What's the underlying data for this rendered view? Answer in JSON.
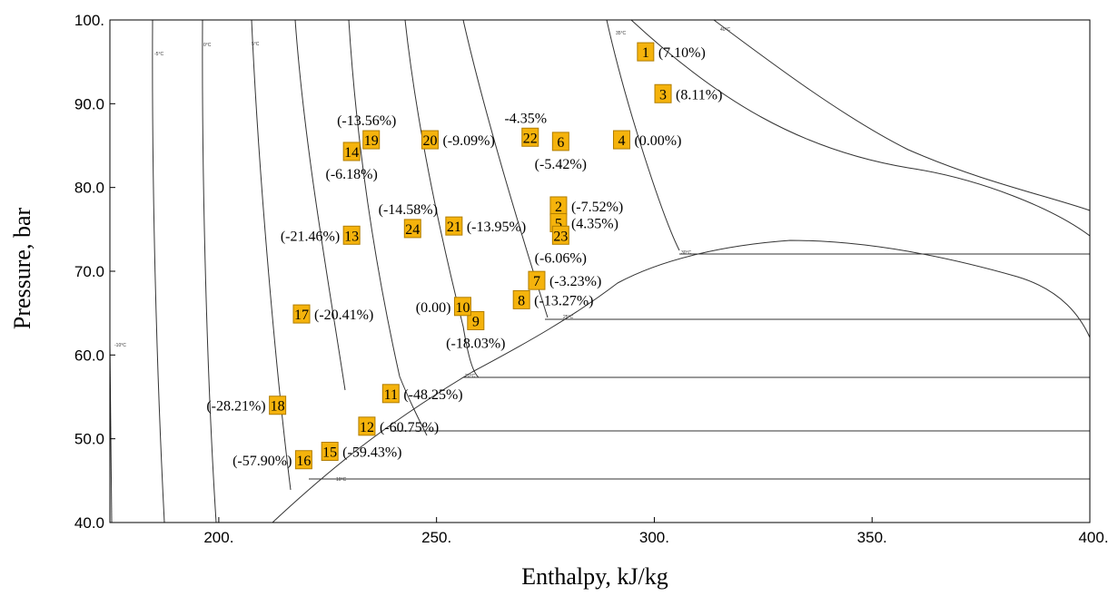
{
  "chart_data": {
    "type": "scatter",
    "xlabel": "Enthalpy, kJ/kg",
    "ylabel": "Pressure, bar",
    "xlim": [
      175,
      400
    ],
    "ylim": [
      40,
      100
    ],
    "x_ticks": [
      {
        "value": 200,
        "label": "200."
      },
      {
        "value": 250,
        "label": "250."
      },
      {
        "value": 300,
        "label": "300."
      },
      {
        "value": 350,
        "label": "350."
      },
      {
        "value": 400,
        "label": "400."
      }
    ],
    "y_ticks": [
      {
        "value": 40,
        "label": "40.0"
      },
      {
        "value": 50,
        "label": "50.0"
      },
      {
        "value": 60,
        "label": "60.0"
      },
      {
        "value": 70,
        "label": "70.0"
      },
      {
        "value": 80,
        "label": "80.0"
      },
      {
        "value": 90,
        "label": "90.0"
      },
      {
        "value": 100,
        "label": "100."
      }
    ],
    "marker_color": "#f5b30c",
    "marker_border": "#b07d00",
    "line_color": "#333333",
    "points": [
      {
        "id": "1",
        "x": 298.0,
        "y": 96.2,
        "pct": "(7.10%)",
        "pos": "right"
      },
      {
        "id": "2",
        "x": 278.0,
        "y": 77.8,
        "pct": "(-7.52%)",
        "pos": "right"
      },
      {
        "id": "3",
        "x": 302.0,
        "y": 91.2,
        "pct": "(8.11%)",
        "pos": "right"
      },
      {
        "id": "4",
        "x": 292.5,
        "y": 85.7,
        "pct": "(0.00%)",
        "pos": "right"
      },
      {
        "id": "5",
        "x": 278.0,
        "y": 75.8,
        "pct": "(4.35%)",
        "pos": "right"
      },
      {
        "id": "6",
        "x": 278.5,
        "y": 85.5,
        "pct": "(-5.42%)",
        "pos": "below"
      },
      {
        "id": "7",
        "x": 273.0,
        "y": 68.9,
        "pct": "(-3.23%)",
        "pos": "right"
      },
      {
        "id": "8",
        "x": 269.5,
        "y": 66.6,
        "pct": "(-13.27%)",
        "pos": "right"
      },
      {
        "id": "9",
        "x": 259.0,
        "y": 64.1,
        "pct": "(-18.03%)",
        "pos": "below"
      },
      {
        "id": "10",
        "x": 256.0,
        "y": 65.8,
        "pct": "(0.00)",
        "pos": "left"
      },
      {
        "id": "11",
        "x": 239.5,
        "y": 55.4,
        "pct": "(-48.25%)",
        "pos": "right"
      },
      {
        "id": "12",
        "x": 234.0,
        "y": 51.5,
        "pct": "(-60.75%)",
        "pos": "right"
      },
      {
        "id": "13",
        "x": 230.5,
        "y": 74.3,
        "pct": "(-21.46%)",
        "pos": "left"
      },
      {
        "id": "14",
        "x": 230.5,
        "y": 84.3,
        "pct": "(-6.18%)",
        "pos": "below"
      },
      {
        "id": "15",
        "x": 225.5,
        "y": 48.5,
        "pct": "(-59.43%)",
        "pos": "right"
      },
      {
        "id": "16",
        "x": 219.5,
        "y": 47.5,
        "pct": "(-57.90%)",
        "pos": "left"
      },
      {
        "id": "17",
        "x": 219.0,
        "y": 64.9,
        "pct": "(-20.41%)",
        "pos": "right"
      },
      {
        "id": "18",
        "x": 213.5,
        "y": 54.0,
        "pct": "(-28.21%)",
        "pos": "left"
      },
      {
        "id": "19",
        "x": 235.0,
        "y": 85.7,
        "pct": "(-13.56%)",
        "pos": "above"
      },
      {
        "id": "20",
        "x": 248.5,
        "y": 85.7,
        "pct": "(-9.09%)",
        "pos": "right"
      },
      {
        "id": "21",
        "x": 254.0,
        "y": 75.4,
        "pct": "(-13.95%)",
        "pos": "right"
      },
      {
        "id": "22",
        "x": 271.5,
        "y": 86.0,
        "pct": "-4.35%",
        "pos": "above"
      },
      {
        "id": "23",
        "x": 278.5,
        "y": 74.3,
        "pct": "(-6.06%)",
        "pos": "below"
      },
      {
        "id": "24",
        "x": 244.5,
        "y": 75.1,
        "pct": "(-14.58%)",
        "pos": "above"
      }
    ],
    "isotherm_labels": [
      "-5°C",
      "0°C",
      "5°C",
      "10°C",
      "20°C",
      "25°C",
      "30°C",
      "35°C",
      "40°C",
      "-10°C"
    ]
  }
}
